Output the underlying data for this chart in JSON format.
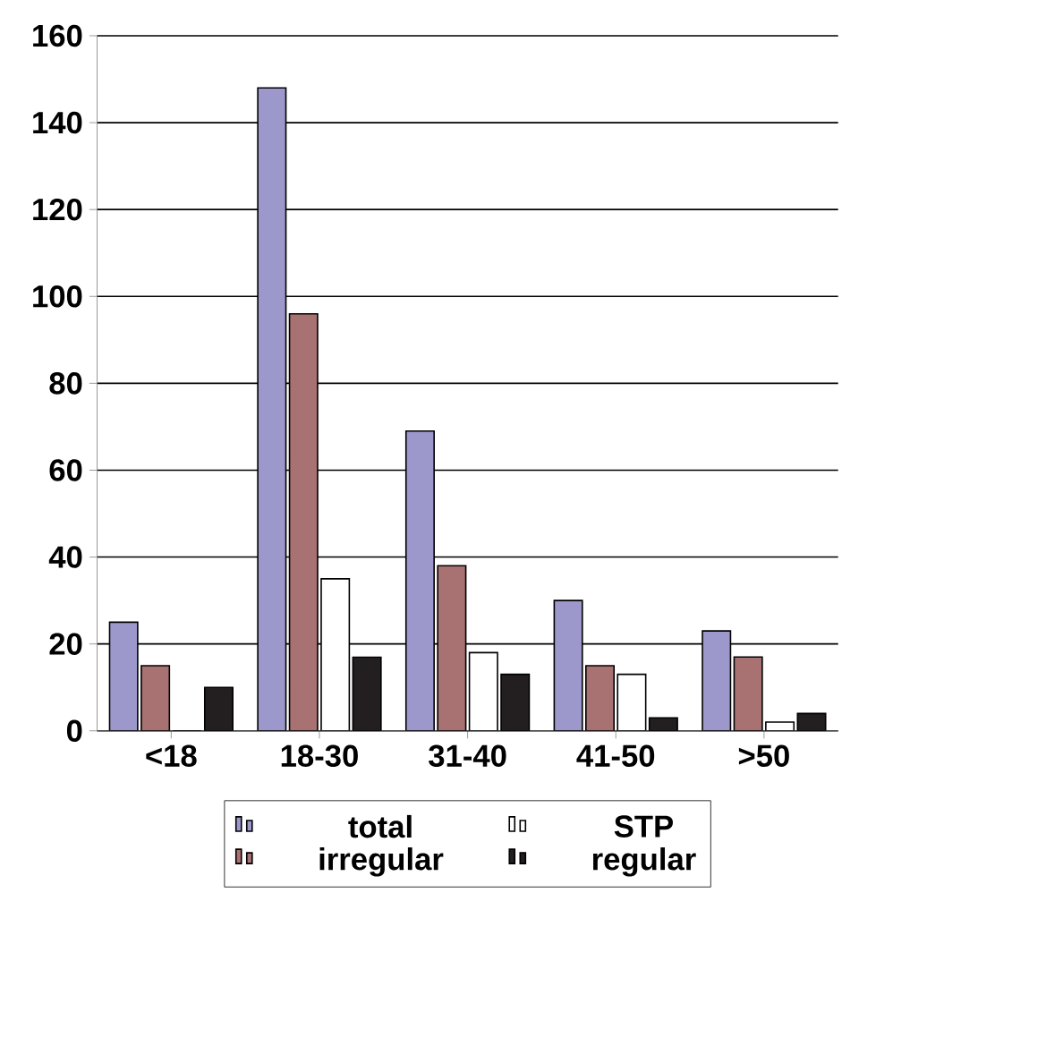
{
  "chart_data": {
    "type": "bar",
    "categories": [
      "<18",
      "18-30",
      "31-40",
      "41-50",
      ">50"
    ],
    "series": [
      {
        "name": "total",
        "color": "#9c98cc",
        "values": [
          25,
          148,
          69,
          30,
          23
        ]
      },
      {
        "name": "irregular",
        "color": "#a87272",
        "values": [
          15,
          96,
          38,
          15,
          17
        ]
      },
      {
        "name": "STP",
        "color": "#ffffff",
        "values": [
          0,
          35,
          18,
          13,
          2
        ]
      },
      {
        "name": "regular",
        "color": "#231f20",
        "values": [
          10,
          17,
          13,
          3,
          4
        ]
      }
    ],
    "ylim": [
      0,
      160
    ],
    "yticks": [
      0,
      20,
      40,
      60,
      80,
      100,
      120,
      140,
      160
    ],
    "grid": "y",
    "legend": "bottom"
  }
}
